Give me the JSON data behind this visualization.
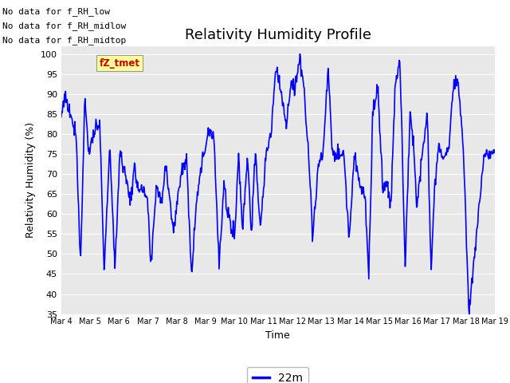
{
  "title": "Relativity Humidity Profile",
  "xlabel": "Time",
  "ylabel": "Relativity Humidity (%)",
  "ylim": [
    35,
    102
  ],
  "yticks": [
    35,
    40,
    45,
    50,
    55,
    60,
    65,
    70,
    75,
    80,
    85,
    90,
    95,
    100
  ],
  "xtick_labels": [
    "Mar 4",
    "Mar 5",
    "Mar 6",
    "Mar 7",
    "Mar 8",
    "Mar 9",
    "Mar 10",
    "Mar 11",
    "Mar 12",
    "Mar 13",
    "Mar 14",
    "Mar 15",
    "Mar 16",
    "Mar 17",
    "Mar 18",
    "Mar 19"
  ],
  "line_color": "#0000FF",
  "line_width": 1.2,
  "legend_label": "22m",
  "no_data_texts": [
    "No data for f_RH_low",
    "No data for f_RH_midlow",
    "No data for f_RH_midtop"
  ],
  "legend_box_label": "fZ_tmet",
  "legend_box_color": "#CC0000",
  "legend_box_bg": "#FFFF99",
  "plot_bg": "#E8E8E8",
  "grid_color": "#FFFFFF",
  "title_fontsize": 13,
  "axis_label_fontsize": 9,
  "tick_fontsize": 8,
  "nodata_fontsize": 8
}
